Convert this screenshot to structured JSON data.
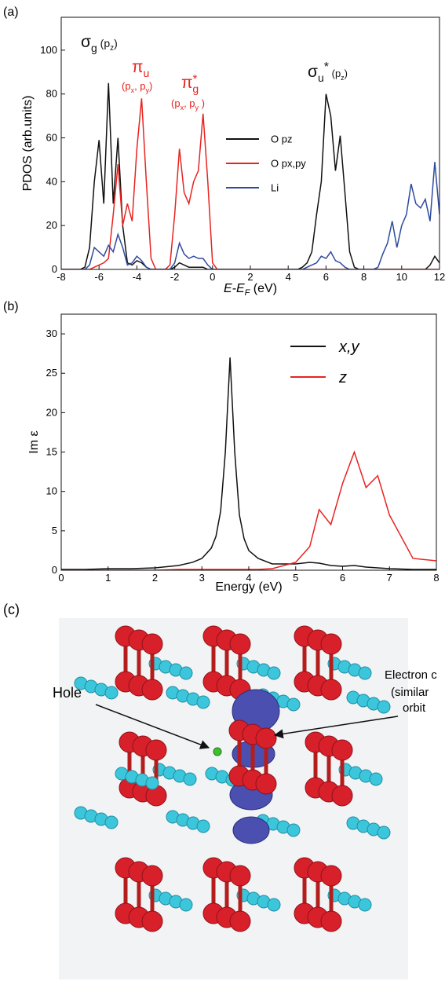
{
  "panel_labels": [
    "(a)",
    "(b)",
    "(c)"
  ],
  "chart_data": [
    {
      "type": "line",
      "y_label": "PDOS (arb.units)",
      "x_label": [
        "E-E",
        "F",
        " (eV)"
      ],
      "xlim": [
        -8,
        12
      ],
      "ylim": [
        0,
        115
      ],
      "xticks": [
        -8,
        -6,
        -4,
        -2,
        0,
        2,
        4,
        6,
        8,
        10,
        12
      ],
      "yticks": [
        0,
        20,
        40,
        60,
        80,
        100
      ],
      "grid": false,
      "x": [
        -8,
        -7.75,
        -7.5,
        -7.25,
        -7,
        -6.75,
        -6.5,
        -6.25,
        -6,
        -5.75,
        -5.5,
        -5.25,
        -5,
        -4.75,
        -4.5,
        -4.25,
        -4,
        -3.75,
        -3.5,
        -3.25,
        -3,
        -2.75,
        -2.5,
        -2.25,
        -2,
        -1.75,
        -1.5,
        -1.25,
        -1,
        -0.75,
        -0.5,
        -0.25,
        0,
        0.25,
        0.5,
        0.75,
        1,
        1.25,
        1.5,
        1.75,
        2,
        2.25,
        2.5,
        2.75,
        3,
        3.25,
        3.5,
        3.75,
        4,
        4.25,
        4.5,
        4.75,
        5,
        5.25,
        5.5,
        5.75,
        6,
        6.25,
        6.5,
        6.75,
        7,
        7.25,
        7.5,
        7.75,
        8,
        8.25,
        8.5,
        8.75,
        9,
        9.25,
        9.5,
        9.75,
        10,
        10.25,
        10.5,
        10.75,
        11,
        11.25,
        11.5,
        11.75,
        12
      ],
      "series": [
        {
          "name": "O pz",
          "color": "#111111",
          "values": [
            0,
            0,
            0,
            0,
            0,
            1,
            10,
            40,
            59,
            30,
            85,
            30,
            60,
            20,
            3,
            2,
            4,
            3,
            1,
            0,
            0,
            0,
            0,
            0,
            1,
            3,
            2,
            1,
            1,
            1,
            1,
            0,
            0,
            0,
            0,
            0,
            0,
            0,
            0,
            0,
            0,
            0,
            0,
            0,
            0,
            0,
            0,
            0,
            0,
            0,
            0,
            1,
            3,
            8,
            25,
            40,
            80,
            70,
            45,
            61,
            35,
            8,
            1,
            0,
            0,
            0,
            0,
            0,
            0,
            0,
            0,
            0,
            0,
            0,
            0,
            0,
            0,
            0,
            2,
            6,
            3
          ]
        },
        {
          "name": "O px,py",
          "color": "#e8231f",
          "values": [
            0,
            0,
            0,
            0,
            0,
            0,
            0,
            1,
            2,
            3,
            5,
            25,
            48,
            20,
            30,
            22,
            55,
            78,
            40,
            5,
            0,
            0,
            0,
            2,
            25,
            55,
            35,
            30,
            40,
            45,
            71,
            40,
            3,
            0,
            0,
            0,
            0,
            0,
            0,
            0,
            0,
            0,
            0,
            0,
            0,
            0,
            0,
            0,
            0,
            0,
            0,
            0,
            0,
            0,
            0,
            0,
            0,
            0,
            0,
            0,
            0,
            0,
            0,
            0,
            0,
            0,
            0,
            0,
            0,
            0,
            0,
            0,
            0,
            0,
            0,
            0,
            0,
            0,
            0,
            0,
            0
          ]
        },
        {
          "name": "Li",
          "color": "#2e4a9e",
          "values": [
            0,
            0,
            0,
            0,
            0,
            0,
            2,
            10,
            8,
            6,
            11,
            8,
            16,
            10,
            2,
            3,
            6,
            4,
            1,
            0,
            0,
            0,
            0,
            0,
            3,
            12,
            7,
            5,
            6,
            5,
            5,
            2,
            0,
            0,
            0,
            0,
            0,
            0,
            0,
            0,
            0,
            0,
            0,
            0,
            0,
            0,
            0,
            0,
            0,
            0,
            0,
            0,
            1,
            2,
            3,
            6,
            5,
            8,
            4,
            3,
            1,
            0,
            0,
            0,
            0,
            0,
            0,
            1,
            7,
            12,
            22,
            10,
            20,
            25,
            39,
            30,
            28,
            32,
            22,
            49,
            25
          ]
        }
      ],
      "annotations": [
        {
          "text": [
            "σ",
            "g",
            " (p",
            "z",
            ")"
          ],
          "color": "#111111"
        },
        {
          "text": [
            "π",
            "u"
          ],
          "color": "#e8231f"
        },
        {
          "text": [
            "(p",
            "x",
            ", p",
            "y",
            ")"
          ],
          "color": "#e8231f"
        },
        {
          "text": [
            "π",
            "*",
            "g"
          ],
          "color": "#e8231f"
        },
        {
          "text": [
            "(p",
            "x",
            ", p",
            "y",
            " )"
          ],
          "color": "#e8231f"
        },
        {
          "text": [
            "σ",
            "u",
            "*",
            " (p",
            "z",
            ")"
          ],
          "color": "#111111"
        }
      ]
    },
    {
      "type": "line",
      "y_label": "Im ε",
      "x_label": [
        "Energy (eV)"
      ],
      "xlim": [
        0,
        8
      ],
      "ylim": [
        0,
        32.5
      ],
      "xticks": [
        0,
        1,
        2,
        3,
        4,
        5,
        6,
        7,
        8
      ],
      "yticks": [
        0,
        5,
        10,
        15,
        20,
        25,
        30
      ],
      "grid": false,
      "x": [
        0,
        0.5,
        1,
        1.5,
        2,
        2.5,
        2.8,
        3,
        3.2,
        3.3,
        3.4,
        3.5,
        3.6,
        3.7,
        3.8,
        3.9,
        4,
        4.2,
        4.5,
        5,
        5.3,
        5.5,
        5.75,
        6,
        6.25,
        6.5,
        6.75,
        7,
        7.5,
        8
      ],
      "series": [
        {
          "name": "x,y",
          "color": "#111111",
          "values": [
            0.1,
            0.1,
            0.2,
            0.2,
            0.3,
            0.6,
            1,
            1.5,
            2.8,
            4.3,
            7.5,
            15,
            27,
            15,
            7,
            4,
            2.5,
            1.5,
            0.8,
            0.8,
            1,
            0.9,
            0.6,
            0.5,
            0.6,
            0.4,
            0.3,
            0.2,
            0.1,
            0.1
          ]
        },
        {
          "name": "z",
          "color": "#e8231f",
          "values": [
            0,
            0,
            0,
            0,
            0,
            0.1,
            0.1,
            0.1,
            0.1,
            0.1,
            0.1,
            0.1,
            0.1,
            0.1,
            0.1,
            0.1,
            0.1,
            0.1,
            0.2,
            1,
            3,
            7.7,
            5.8,
            11,
            15,
            10.5,
            12,
            7,
            1.5,
            1.2
          ]
        }
      ]
    }
  ],
  "image": {
    "labels": [
      "Hole",
      "Electron c",
      "(similar",
      "orbit"
    ]
  }
}
